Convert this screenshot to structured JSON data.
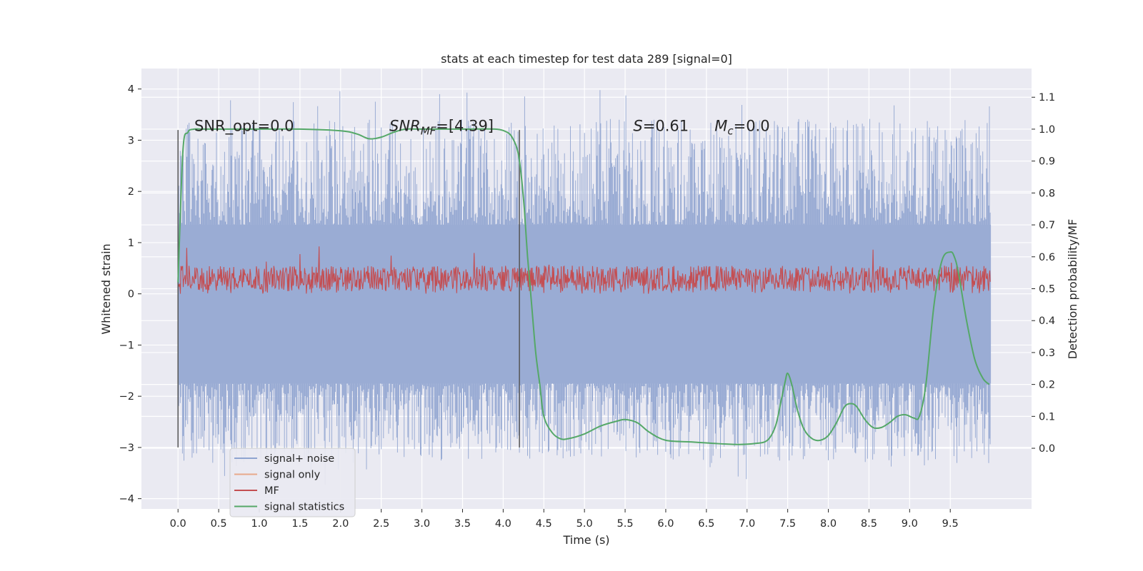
{
  "chart_data": {
    "type": "line",
    "title": "stats at each timestep for test data 289 [signal=0]",
    "xlabel": "Time (s)",
    "ylabel": "Whitened strain",
    "ylabel_right": "Detection probability/MF",
    "xlim": [
      -0.45,
      10.5
    ],
    "ylim": [
      -4.2,
      4.4
    ],
    "ylim_right": [
      -0.19,
      1.19
    ],
    "xticks": [
      0.0,
      0.5,
      1.0,
      1.5,
      2.0,
      2.5,
      3.0,
      3.5,
      4.0,
      4.5,
      5.0,
      5.5,
      6.0,
      6.5,
      7.0,
      7.5,
      8.0,
      8.5,
      9.0,
      9.5
    ],
    "xtick_labels": [
      "0.0",
      "0.5",
      "1.0",
      "1.5",
      "2.0",
      "2.5",
      "3.0",
      "3.5",
      "4.0",
      "4.5",
      "5.0",
      "5.5",
      "6.0",
      "6.5",
      "7.0",
      "7.5",
      "8.0",
      "8.5",
      "9.0",
      "9.5"
    ],
    "yticks": [
      4,
      3,
      2,
      1,
      0,
      -1,
      -2,
      -3,
      -4
    ],
    "ytick_labels": [
      "4",
      "3",
      "2",
      "1",
      "0",
      "−1",
      "−2",
      "−3",
      "−4"
    ],
    "yticks_right": [
      1.1,
      1.0,
      0.9,
      0.8,
      0.7,
      0.6,
      0.5,
      0.4,
      0.3,
      0.2,
      0.1,
      0.0
    ],
    "ytick_labels_right": [
      "1.1",
      "1.0",
      "0.9",
      "0.8",
      "0.7",
      "0.6",
      "0.5",
      "0.4",
      "0.3",
      "0.2",
      "0.1",
      "0.0"
    ],
    "grid": true,
    "legend_position": "bottom-left",
    "legend": [
      {
        "label": "signal+ noise",
        "color": "#8fa4d0"
      },
      {
        "label": "signal only",
        "color": "#e8a98b"
      },
      {
        "label": "MF",
        "color": "#c44e52"
      },
      {
        "label": "signal statistics",
        "color": "#55a868"
      }
    ],
    "annotations": [
      {
        "text": "SNR_opt=0.0",
        "x": 0.2,
        "y": 3.18
      },
      {
        "text": "SNR",
        "sub": "MF",
        "rest": "=[4.39]",
        "italic": true,
        "x": 2.6,
        "y": 3.18
      },
      {
        "text": "S",
        "rest": "=0.61",
        "italic": true,
        "x": 5.6,
        "y": 3.18
      },
      {
        "text": "M",
        "sub": "c",
        "rest": "=0.0",
        "italic": true,
        "x": 6.6,
        "y": 3.18
      }
    ],
    "vlines": [
      {
        "x": 0.0,
        "y0": -3.0,
        "y1": 3.2
      },
      {
        "x": 4.2,
        "y0": -3.0,
        "y1": 3.2
      }
    ],
    "noise_envelope": {
      "x_start": 0.0,
      "x_end": 10.0,
      "band_low": -1.75,
      "band_high": 1.35,
      "peak_max": 4.0,
      "trough_min": -3.75
    },
    "mf_band": {
      "x_start": 0.0,
      "x_end": 10.0,
      "min": 0.0,
      "max": 0.95,
      "typical": [
        0.05,
        0.55
      ]
    },
    "series": [
      {
        "name": "signal statistics",
        "axis": "right",
        "color": "#55a868",
        "x": [
          0.0,
          0.06,
          0.12,
          0.2,
          0.3,
          0.5,
          1.0,
          1.5,
          2.0,
          2.2,
          2.35,
          2.5,
          2.65,
          2.8,
          3.0,
          3.5,
          3.9,
          4.05,
          4.12,
          4.18,
          4.22,
          4.26,
          4.3,
          4.35,
          4.4,
          4.45,
          4.5,
          4.6,
          4.7,
          4.8,
          5.0,
          5.2,
          5.4,
          5.5,
          5.65,
          5.8,
          6.0,
          6.3,
          6.6,
          6.9,
          7.1,
          7.25,
          7.35,
          7.42,
          7.47,
          7.5,
          7.55,
          7.62,
          7.7,
          7.8,
          7.9,
          8.0,
          8.1,
          8.2,
          8.28,
          8.35,
          8.45,
          8.55,
          8.65,
          8.75,
          8.85,
          8.95,
          9.05,
          9.12,
          9.2,
          9.3,
          9.4,
          9.5,
          9.55,
          9.6,
          9.7,
          9.8,
          9.9,
          9.98
        ],
        "y": [
          0.52,
          0.93,
          0.99,
          1.0,
          1.0,
          1.0,
          1.0,
          1.0,
          0.995,
          0.985,
          0.97,
          0.975,
          0.99,
          1.0,
          1.0,
          1.0,
          1.0,
          0.99,
          0.97,
          0.93,
          0.86,
          0.75,
          0.6,
          0.45,
          0.3,
          0.2,
          0.1,
          0.05,
          0.03,
          0.03,
          0.045,
          0.07,
          0.085,
          0.09,
          0.08,
          0.05,
          0.025,
          0.02,
          0.015,
          0.012,
          0.015,
          0.025,
          0.07,
          0.15,
          0.21,
          0.235,
          0.2,
          0.12,
          0.06,
          0.03,
          0.025,
          0.04,
          0.08,
          0.13,
          0.14,
          0.13,
          0.09,
          0.065,
          0.065,
          0.08,
          0.1,
          0.105,
          0.095,
          0.1,
          0.2,
          0.45,
          0.59,
          0.615,
          0.6,
          0.55,
          0.4,
          0.28,
          0.22,
          0.2
        ]
      }
    ]
  }
}
